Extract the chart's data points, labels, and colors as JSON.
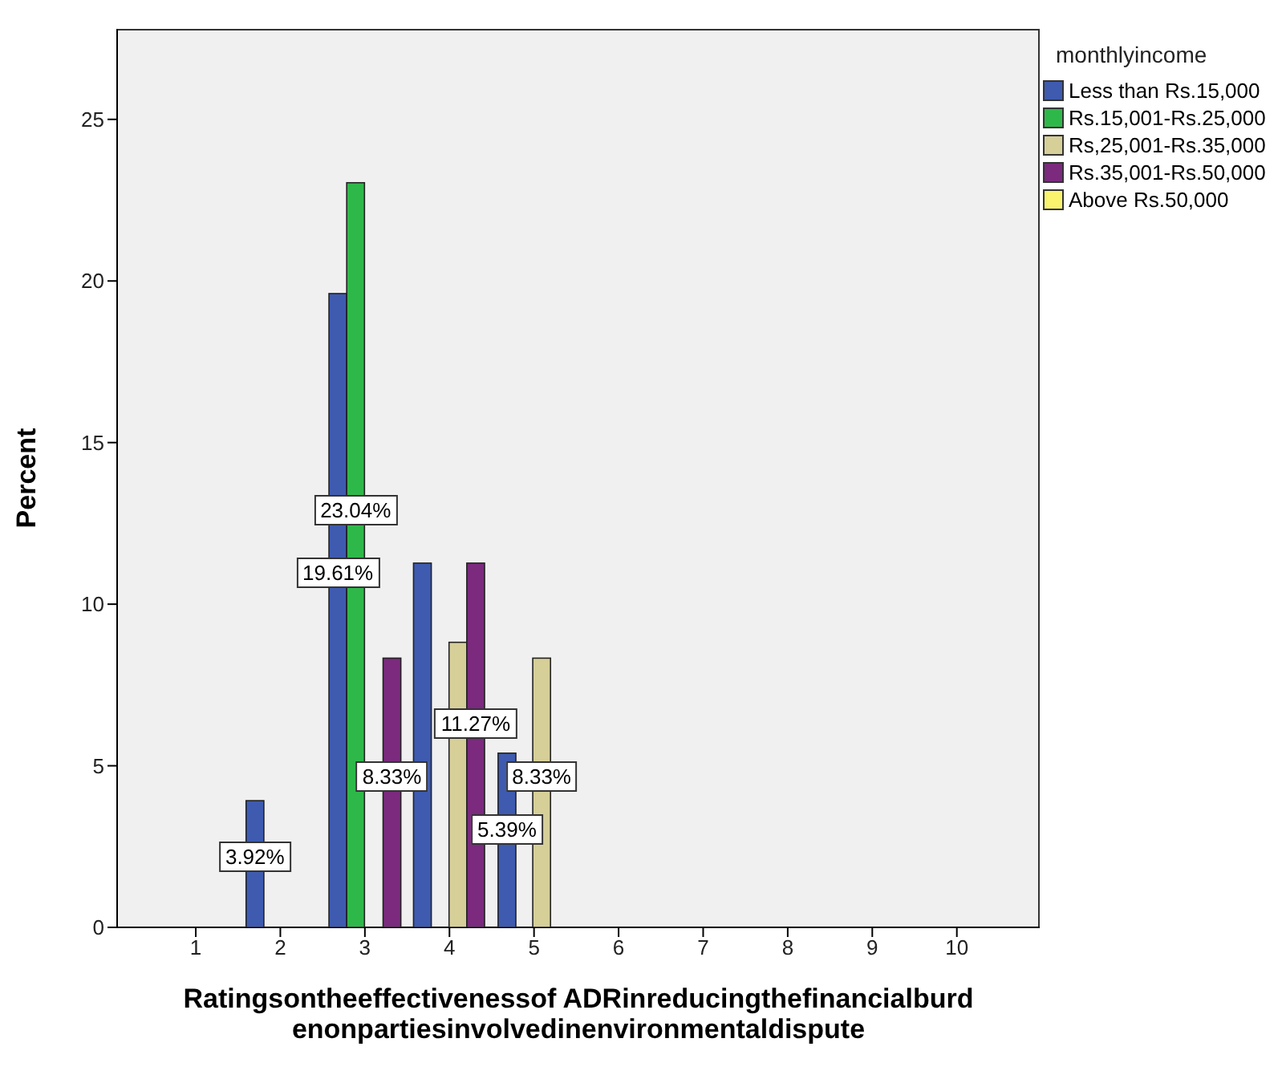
{
  "chart_data": {
    "type": "bar",
    "xlabel": "Ratingsontheeffectivenessof ADRinreducingthefinancialburdenonpartiesinvolvedinenvironmentaldispute",
    "ylabel": "Percent",
    "legend_title": "monthlyincome",
    "legend": "top right",
    "xlim": [
      0.07,
      10.98
    ],
    "xticks": [
      1,
      2,
      3,
      4,
      5,
      6,
      7,
      8,
      9,
      10
    ],
    "ylim": [
      0,
      27.8
    ],
    "yticks": [
      0,
      5,
      10,
      15,
      20,
      25
    ],
    "series": [
      {
        "name": "Less than Rs.15,000",
        "color": "#3e5bb0",
        "x": [
          1.7,
          2.68,
          3.68,
          4.68
        ],
        "values": [
          3.92,
          19.61,
          11.27,
          5.39
        ],
        "value_labels": [
          "3.92%",
          "19.61%",
          null,
          "5.39%"
        ]
      },
      {
        "name": "Rs.15,001-Rs.25,000",
        "color": "#2fb84a",
        "x": [
          2.89
        ],
        "values": [
          23.04
        ],
        "value_labels": [
          "23.04%"
        ]
      },
      {
        "name": "Rs,25,001-Rs.35,000",
        "color": "#d6cf98",
        "x": [
          4.1,
          5.09
        ],
        "values": [
          8.82,
          8.33
        ],
        "value_labels": [
          null,
          "8.33%"
        ]
      },
      {
        "name": "Rs.35,001-Rs.50,000",
        "color": "#7b2a7e",
        "x": [
          3.32,
          4.31
        ],
        "values": [
          8.33,
          11.27
        ],
        "value_labels": [
          "8.33%",
          "11.27%"
        ]
      },
      {
        "name": "Above Rs.50,000",
        "color": "#f9f36e"
      }
    ]
  }
}
